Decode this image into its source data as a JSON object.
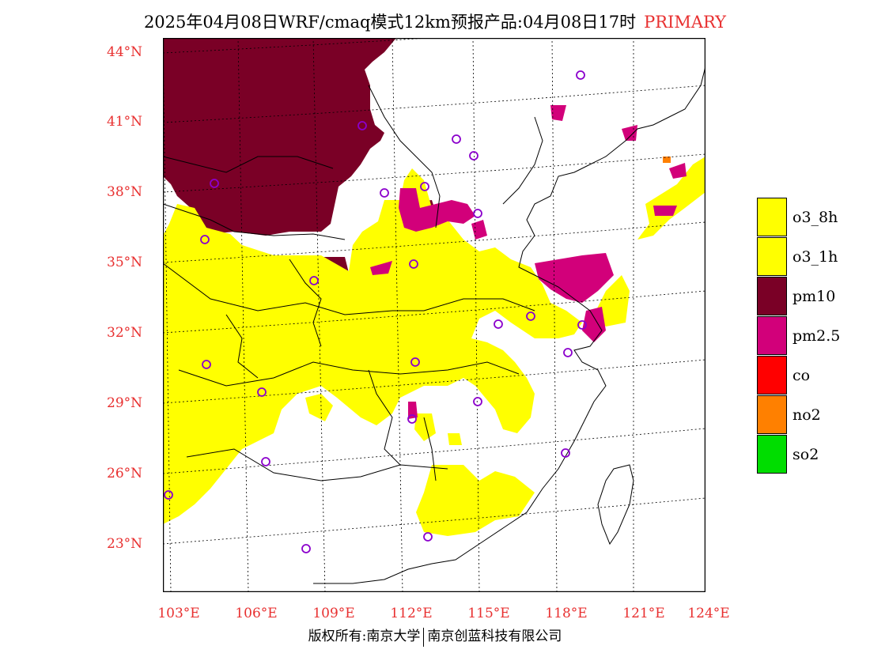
{
  "title": {
    "main": "2025年04月08日WRF/cmaq模式12km预报产品:04月08日17时",
    "tag": "PRIMARY"
  },
  "axes": {
    "y_labels": [
      "44°N",
      "41°N",
      "38°N",
      "35°N",
      "32°N",
      "29°N",
      "26°N",
      "23°N"
    ],
    "x_labels": [
      "103°E",
      "106°E",
      "109°E",
      "112°E",
      "115°E",
      "118°E",
      "121°E",
      "124°E"
    ]
  },
  "legend": [
    {
      "label": "o3_8h",
      "color": "#ffff00"
    },
    {
      "label": "o3_1h",
      "color": "#ffff00"
    },
    {
      "label": "pm10",
      "color": "#7a0026"
    },
    {
      "label": "pm2.5",
      "color": "#d2007a"
    },
    {
      "label": "co",
      "color": "#ff0000"
    },
    {
      "label": "no2",
      "color": "#ff8000"
    },
    {
      "label": "so2",
      "color": "#00dd00"
    }
  ],
  "footer": {
    "left": "版权所有:南京大学",
    "right": "南京创蓝科技有限公司"
  }
}
